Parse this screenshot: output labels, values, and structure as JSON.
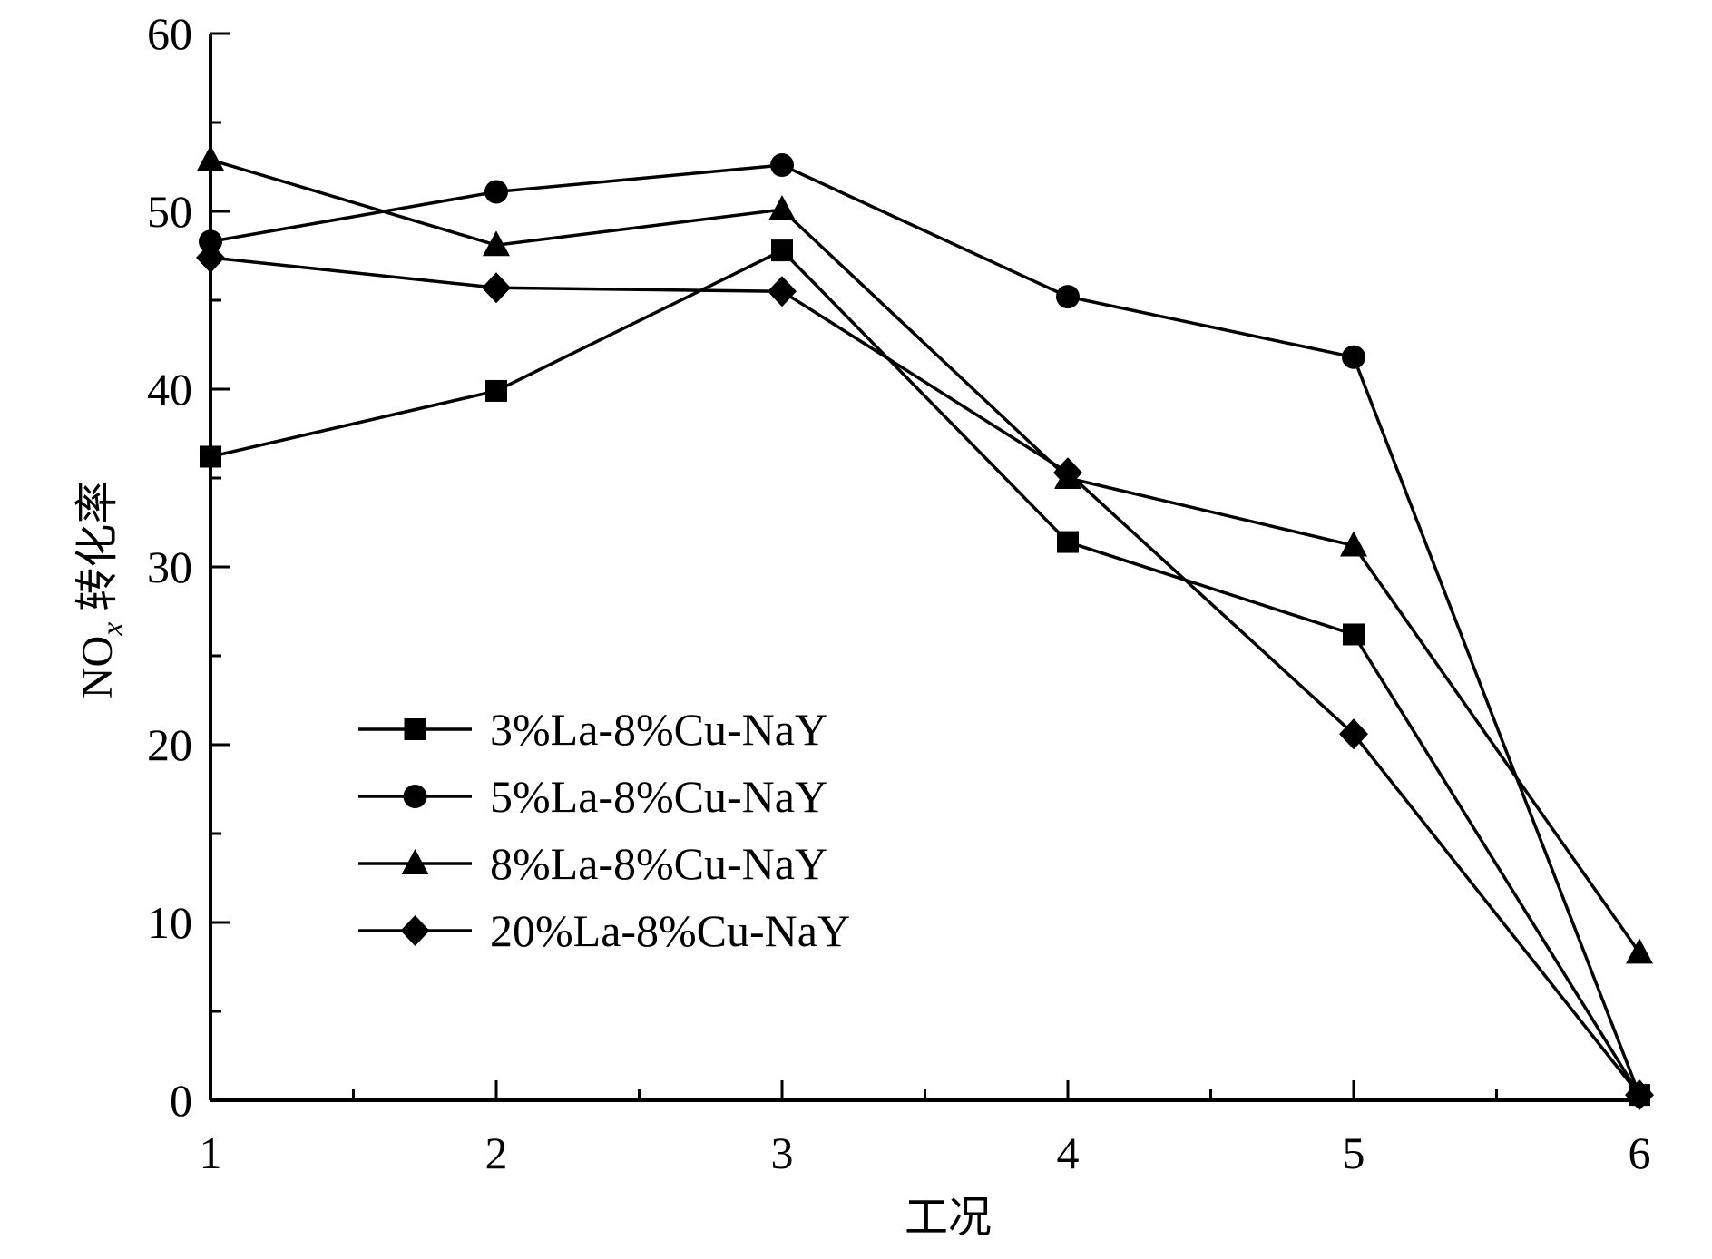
{
  "chart_data": {
    "type": "line",
    "title": "",
    "xlabel": "工况",
    "ylabel_main": "NO",
    "ylabel_sub": "x",
    "ylabel_rest": " 转化率",
    "x": [
      1,
      2,
      3,
      4,
      5,
      6
    ],
    "xlim": [
      1,
      6
    ],
    "ylim": [
      0,
      60
    ],
    "xticks": [
      "1",
      "2",
      "3",
      "4",
      "5",
      "6"
    ],
    "yticks": [
      "0",
      "10",
      "20",
      "30",
      "40",
      "50",
      "60"
    ],
    "grid": false,
    "legend_position": "lower-left",
    "series": [
      {
        "name": "3%La-8%Cu-NaY",
        "marker": "square",
        "values": [
          36.2,
          39.9,
          47.8,
          31.4,
          26.2,
          0.3
        ]
      },
      {
        "name": "5%La-8%Cu-NaY",
        "marker": "circle",
        "values": [
          48.3,
          51.1,
          52.6,
          45.2,
          41.8,
          0.3
        ]
      },
      {
        "name": "8%La-8%Cu-NaY",
        "marker": "triangle",
        "values": [
          52.9,
          48.1,
          50.1,
          35.0,
          31.2,
          8.3
        ]
      },
      {
        "name": "20%La-8%Cu-NaY",
        "marker": "diamond",
        "values": [
          47.4,
          45.7,
          45.5,
          35.3,
          20.6,
          0.3
        ]
      }
    ],
    "line_color": "#000000"
  }
}
